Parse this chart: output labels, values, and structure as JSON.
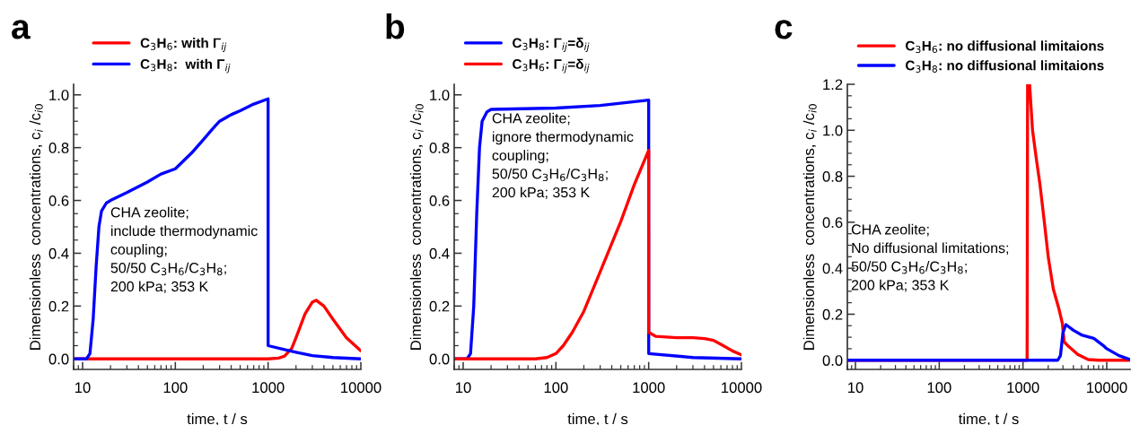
{
  "chart_data": [
    {
      "type": "line",
      "title": "a",
      "xlabel": "time, t / s",
      "ylabel": "Dimensionless  concentrations, c$_{i}$ /c$_{i0}$",
      "log": "x",
      "grid": false,
      "legend": "top",
      "marker": "none",
      "line_style": "solid",
      "xlim": [
        8,
        10000
      ],
      "xticks": [
        10,
        100,
        1000,
        10000
      ],
      "ylim": [
        -0.04,
        1.04
      ],
      "yticks": [
        {
          "value": 0,
          "label": "0.0"
        },
        {
          "value": 0.2,
          "label": "0.2"
        },
        {
          "value": 0.4,
          "label": "0.4"
        },
        {
          "value": 0.6,
          "label": "0.6"
        },
        {
          "value": 0.8,
          "label": "0.8"
        },
        {
          "value": 1,
          "label": "1.0"
        }
      ],
      "annotations": [
        "CHA zeolite;\ninclude thermodynamic\ncoupling;\n50/50 C$_{3}$H$_{6}$/C$_{3}$H$_{8}$;\n200 kPa; 353 K"
      ],
      "series": [
        {
          "name": "C$_{3}$H$_{6}$: with Γ$_{ij}$",
          "color": "#ff0000",
          "x": [
            8,
            100,
            1000,
            1300,
            1500,
            1800,
            2000,
            2500,
            3000,
            3300,
            4000,
            5000,
            7000,
            10000
          ],
          "values": [
            0,
            0,
            0,
            0.003,
            0.01,
            0.04,
            0.08,
            0.17,
            0.215,
            0.222,
            0.2,
            0.15,
            0.08,
            0.03
          ]
        },
        {
          "name": "C$_{3}$H$_{8}$:  with Γ$_{ij}$",
          "color": "#0000ff",
          "x": [
            8,
            11,
            12,
            13,
            14,
            15,
            16,
            18,
            20,
            30,
            50,
            70,
            100,
            150,
            200,
            250,
            300,
            400,
            500,
            700,
            1000,
            1001,
            1500,
            2000,
            3000,
            5000,
            10000
          ],
          "values": [
            0,
            0,
            0.02,
            0.15,
            0.35,
            0.5,
            0.56,
            0.59,
            0.6,
            0.63,
            0.67,
            0.7,
            0.72,
            0.78,
            0.83,
            0.87,
            0.9,
            0.925,
            0.94,
            0.965,
            0.985,
            0.05,
            0.035,
            0.025,
            0.012,
            0.005,
            0
          ]
        }
      ]
    },
    {
      "type": "line",
      "title": "b",
      "xlabel": "time, t / s",
      "ylabel": "Dimensionless  concentrations, c$_{i}$ /c$_{i0}$",
      "log": "x",
      "grid": false,
      "legend": "top",
      "marker": "none",
      "line_style": "solid",
      "xlim": [
        8,
        10000
      ],
      "xticks": [
        10,
        100,
        1000,
        10000
      ],
      "ylim": [
        -0.04,
        1.04
      ],
      "yticks": [
        {
          "value": 0,
          "label": "0.0"
        },
        {
          "value": 0.2,
          "label": "0.2"
        },
        {
          "value": 0.4,
          "label": "0.4"
        },
        {
          "value": 0.6,
          "label": "0.6"
        },
        {
          "value": 0.8,
          "label": "0.8"
        },
        {
          "value": 1,
          "label": "1.0"
        }
      ],
      "annotations": [
        "CHA zeolite;\nignore thermodynamic\ncoupling;\n50/50 C$_{3}$H$_{6}$/C$_{3}$H$_{8}$;\n200 kPa; 353 K"
      ],
      "series": [
        {
          "name": "C$_{3}$H$_{8}$: Γ$_{ij}$=δ$_{ij}$",
          "color": "#0000ff",
          "x": [
            8,
            11,
            12,
            13,
            14,
            15,
            16,
            18,
            20,
            100,
            300,
            1000,
            1001,
            3000,
            10000
          ],
          "values": [
            0,
            0,
            0.02,
            0.2,
            0.55,
            0.8,
            0.9,
            0.935,
            0.945,
            0.95,
            0.96,
            0.98,
            0.02,
            0.005,
            0
          ]
        },
        {
          "name": "C$_{3}$H$_{6}$: Γ$_{ij}$=δ$_{ij}$",
          "color": "#ff0000",
          "x": [
            8,
            60,
            80,
            100,
            120,
            150,
            200,
            300,
            500,
            700,
            1000,
            1001,
            1200,
            2000,
            3000,
            4000,
            5000,
            6000,
            8000,
            10000
          ],
          "values": [
            0,
            0,
            0.005,
            0.02,
            0.05,
            0.1,
            0.18,
            0.33,
            0.52,
            0.66,
            0.79,
            0.1,
            0.085,
            0.08,
            0.08,
            0.077,
            0.07,
            0.055,
            0.03,
            0.015
          ]
        }
      ]
    },
    {
      "type": "line",
      "title": "c",
      "xlabel": "time, t / s",
      "ylabel": "Dimensionless  concentrations, c$_{i}$ /c$_{i0}$",
      "log": "x",
      "grid": false,
      "legend": "top",
      "marker": "none",
      "line_style": "solid",
      "xlim": [
        8,
        19000
      ],
      "xticks": [
        10,
        100,
        1000,
        10000
      ],
      "ylim": [
        -0.04,
        1.2
      ],
      "yticks": [
        {
          "value": 0,
          "label": "0.0"
        },
        {
          "value": 0.2,
          "label": "0.2"
        },
        {
          "value": 0.4,
          "label": "0.4"
        },
        {
          "value": 0.6,
          "label": "0.6"
        },
        {
          "value": 0.8,
          "label": "0.8"
        },
        {
          "value": 1,
          "label": "1.0"
        },
        {
          "value": 1.2,
          "label": "1.2"
        }
      ],
      "annotations": [
        "CHA zeolite;\nNo diffusional limitations;\n50/50 C$_{3}$H$_{6}$/C$_{3}$H$_{8}$;\n200 kPa; 353 K"
      ],
      "series": [
        {
          "name": "C$_{3}$H$_{6}$: no diffusional limitaions",
          "color": "#ff0000",
          "x": [
            8,
            1000,
            1120,
            1135,
            1170,
            1200,
            1300,
            1450,
            1600,
            1800,
            2000,
            2300,
            2700,
            2950,
            3100,
            3500,
            4500,
            6000,
            8000,
            19000
          ],
          "values": [
            0,
            0,
            0,
            1.2,
            null,
            1.2,
            1.0,
            0.87,
            0.76,
            0.6,
            0.45,
            0.31,
            0.22,
            0.16,
            0.08,
            0.06,
            0.025,
            0.003,
            0,
            0
          ]
        },
        {
          "name": "C$_{3}$H$_{8}$: no diffusional limitaions",
          "color": "#0000ff",
          "x": [
            8,
            1000,
            2600,
            2800,
            3000,
            3250,
            4000,
            5000,
            7000,
            9000,
            10000,
            14000,
            19000
          ],
          "values": [
            0,
            0,
            0,
            0.02,
            0.12,
            0.155,
            0.13,
            0.11,
            0.095,
            0.065,
            0.05,
            0.02,
            0.003
          ]
        }
      ]
    }
  ]
}
